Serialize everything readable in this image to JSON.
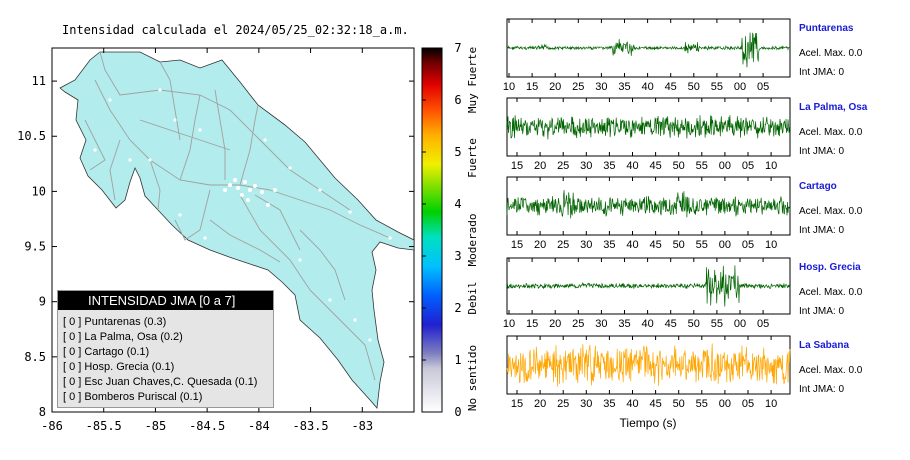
{
  "map": {
    "title": "Intensidad calculada el 2024/05/25_02:32:18_a.m.",
    "x_ticks": [
      "-86",
      "-85.5",
      "-85",
      "-84.5",
      "-84",
      "-83.5",
      "-83"
    ],
    "y_ticks": [
      "11",
      "10.5",
      "10",
      "9.5",
      "9",
      "8.5",
      "8"
    ],
    "land_color": "#b3ecec",
    "road_color": "#a0a0a0"
  },
  "colorbar": {
    "ticks": [
      "7",
      "6",
      "5",
      "4",
      "3",
      "2",
      "1",
      "0"
    ],
    "labels": [
      "Muy Fuerte",
      "Fuerte",
      "Moderado",
      "Debil",
      "No sentido"
    ]
  },
  "legend": {
    "title": "INTENSIDAD JMA [0 a 7]",
    "items": [
      "[ 0 ] Puntarenas (0.3)",
      "[ 0 ] La Palma, Osa (0.2)",
      "[ 0 ] Cartago (0.1)",
      "[ 0 ] Hosp. Grecia (0.1)",
      "[ 0 ] Esc Juan Chaves,C. Quesada (0.1)",
      "[ 0 ] Bomberos Puriscal (0.1)"
    ]
  },
  "stations": [
    {
      "name": "Puntarenas",
      "acel": "Acel. Max. 0.0",
      "jma": "Int JMA: 0",
      "color": "#006400",
      "ticks": [
        "10",
        "15",
        "20",
        "25",
        "30",
        "35",
        "40",
        "45",
        "50",
        "55",
        "00",
        "05"
      ]
    },
    {
      "name": "La Palma, Osa",
      "acel": "Acel. Max. 0.0",
      "jma": "Int JMA: 0",
      "color": "#006400",
      "ticks": [
        "15",
        "20",
        "25",
        "30",
        "35",
        "40",
        "45",
        "50",
        "55",
        "00",
        "05",
        "10"
      ]
    },
    {
      "name": "Cartago",
      "acel": "Acel. Max. 0.0",
      "jma": "Int JMA: 0",
      "color": "#006400",
      "ticks": [
        "15",
        "20",
        "25",
        "30",
        "35",
        "40",
        "45",
        "50",
        "55",
        "00",
        "05",
        "10"
      ]
    },
    {
      "name": "Hosp. Grecia",
      "acel": "Acel. Max. 0.0",
      "jma": "Int JMA: 0",
      "color": "#006400",
      "ticks": [
        "10",
        "15",
        "20",
        "25",
        "30",
        "35",
        "40",
        "45",
        "50",
        "55",
        "00",
        "05"
      ]
    },
    {
      "name": "La Sabana",
      "acel": "Acel. Max. 0.0",
      "jma": "Int JMA: 0",
      "color": "#ffa500",
      "ticks": [
        "15",
        "20",
        "25",
        "30",
        "35",
        "40",
        "45",
        "50",
        "55",
        "00",
        "05",
        "10"
      ]
    }
  ],
  "waveform_xlabel": "Tiempo (s)",
  "chart_data": [
    {
      "type": "map",
      "title": "Intensidad calculada el 2024/05/25_02:32:18_a.m.",
      "xlim": [
        -86,
        -82.5
      ],
      "ylim": [
        8,
        11.3
      ],
      "x_ticks": [
        -86,
        -85.5,
        -85,
        -84.5,
        -84,
        -83.5,
        -83
      ],
      "y_ticks": [
        8,
        8.5,
        9,
        9.5,
        10,
        10.5,
        11
      ]
    },
    {
      "type": "heatmap",
      "title": "colorbar",
      "range": [
        0,
        7
      ],
      "ticks": [
        0,
        1,
        2,
        3,
        4,
        5,
        6,
        7
      ]
    },
    {
      "type": "line",
      "xlabel": "Tiempo (s)",
      "series": [
        {
          "name": "Puntarenas",
          "acel_max": 0.0,
          "int_jma": 0
        },
        {
          "name": "La Palma, Osa",
          "acel_max": 0.0,
          "int_jma": 0
        },
        {
          "name": "Cartago",
          "acel_max": 0.0,
          "int_jma": 0
        },
        {
          "name": "Hosp. Grecia",
          "acel_max": 0.0,
          "int_jma": 0
        },
        {
          "name": "La Sabana",
          "acel_max": 0.0,
          "int_jma": 0
        }
      ]
    }
  ]
}
